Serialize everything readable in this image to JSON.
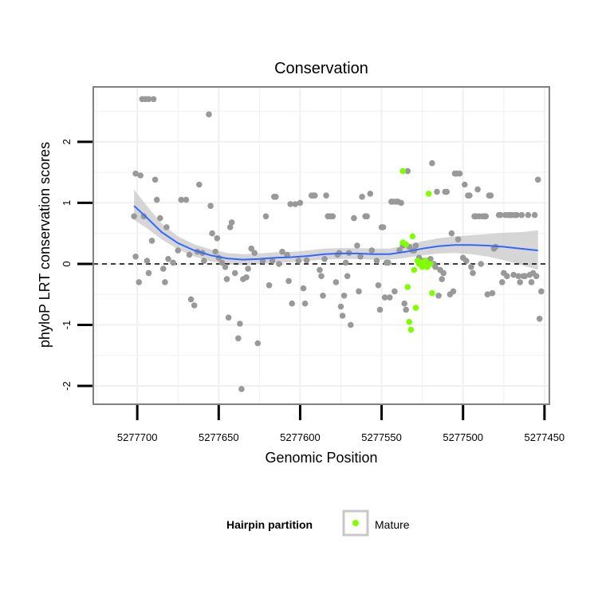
{
  "chart_data": {
    "type": "scatter",
    "title": "Conservation",
    "xlabel": "Genomic Position",
    "ylabel": "phyloP LRT conservation scores",
    "x_reversed": true,
    "xlim": [
      5277727,
      5277447
    ],
    "ylim": [
      -2.3,
      2.9
    ],
    "x_ticks": [
      5277700,
      5277650,
      5277600,
      5277550,
      5277500,
      5277450
    ],
    "x_tick_labels": [
      "5277700",
      "5277650",
      "5277600",
      "5277550",
      "5277500",
      "5277450"
    ],
    "y_ticks": [
      -2,
      -1,
      0,
      1,
      2
    ],
    "y_tick_labels": [
      "-2",
      "-1",
      "0",
      "1",
      "2"
    ],
    "reference_line": {
      "y": 0,
      "style": "dashed",
      "color": "#000000"
    },
    "grid": true,
    "colors": {
      "other": "#999999",
      "mature": "#80ff00",
      "smooth": "#3366ff",
      "ribbon": "#c8c8c8",
      "panel_border": "#808080",
      "grid": "#f0f0f0"
    },
    "legend": {
      "title": "Hairpin partition",
      "entries": [
        "Mature"
      ],
      "position": "bottom"
    },
    "series": [
      {
        "name": "Other",
        "points": [
          [
            5277702,
            0.78
          ],
          [
            5277701,
            1.48
          ],
          [
            5277698,
            1.45
          ],
          [
            5277701,
            0.12
          ],
          [
            5277699,
            -0.3
          ],
          [
            5277697,
            2.7
          ],
          [
            5277695,
            2.7
          ],
          [
            5277693,
            2.7
          ],
          [
            5277690,
            2.7
          ],
          [
            5277696,
            0.78
          ],
          [
            5277694,
            0.05
          ],
          [
            5277693,
            -0.15
          ],
          [
            5277691,
            0.38
          ],
          [
            5277689,
            1.38
          ],
          [
            5277688,
            1.05
          ],
          [
            5277686,
            0.75
          ],
          [
            5277684,
            -0.08
          ],
          [
            5277683,
            -0.3
          ],
          [
            5277682,
            0.6
          ],
          [
            5277681,
            0.08
          ],
          [
            5277678,
            0.02
          ],
          [
            5277675,
            0.22
          ],
          [
            5277673,
            1.05
          ],
          [
            5277670,
            1.05
          ],
          [
            5277668,
            0.15
          ],
          [
            5277667,
            -0.58
          ],
          [
            5277665,
            -0.68
          ],
          [
            5277663,
            0.2
          ],
          [
            5277662,
            1.3
          ],
          [
            5277660,
            0.18
          ],
          [
            5277659,
            0.05
          ],
          [
            5277656,
            2.45
          ],
          [
            5277655,
            0.95
          ],
          [
            5277654,
            0.5
          ],
          [
            5277652,
            0.2
          ],
          [
            5277651,
            0.42
          ],
          [
            5277650,
            0.1
          ],
          [
            5277648,
            0.02
          ],
          [
            5277646,
            -0.05
          ],
          [
            5277645,
            -0.25
          ],
          [
            5277644,
            -0.88
          ],
          [
            5277643,
            0.6
          ],
          [
            5277642,
            0.68
          ],
          [
            5277640,
            -0.15
          ],
          [
            5277638,
            -1.22
          ],
          [
            5277637,
            -0.98
          ],
          [
            5277636,
            -2.05
          ],
          [
            5277635,
            -0.25
          ],
          [
            5277633,
            -0.22
          ],
          [
            5277632,
            -0.08
          ],
          [
            5277630,
            0.25
          ],
          [
            5277628,
            0.18
          ],
          [
            5277626,
            -1.3
          ],
          [
            5277623,
            0.05
          ],
          [
            5277621,
            0.78
          ],
          [
            5277619,
            -0.35
          ],
          [
            5277617,
            0.05
          ],
          [
            5277616,
            1.1
          ],
          [
            5277615,
            1.1
          ],
          [
            5277613,
            0.0
          ],
          [
            5277611,
            0.2
          ],
          [
            5277608,
            0.15
          ],
          [
            5277607,
            -0.28
          ],
          [
            5277606,
            0.98
          ],
          [
            5277605,
            -0.65
          ],
          [
            5277603,
            0.98
          ],
          [
            5277601,
            0.05
          ],
          [
            5277600,
            1.0
          ],
          [
            5277598,
            -0.4
          ],
          [
            5277597,
            -0.65
          ],
          [
            5277596,
            0.06
          ],
          [
            5277593,
            1.12
          ],
          [
            5277592,
            1.12
          ],
          [
            5277591,
            1.12
          ],
          [
            5277588,
            -0.1
          ],
          [
            5277587,
            -0.2
          ],
          [
            5277586,
            -0.52
          ],
          [
            5277585,
            0.08
          ],
          [
            5277584,
            1.12
          ],
          [
            5277583,
            0.78
          ],
          [
            5277582,
            0.78
          ],
          [
            5277581,
            0.78
          ],
          [
            5277580,
            0.78
          ],
          [
            5277578,
            -0.3
          ],
          [
            5277577,
            0.15
          ],
          [
            5277576,
            0.18
          ],
          [
            5277575,
            -0.7
          ],
          [
            5277574,
            -0.85
          ],
          [
            5277573,
            -0.52
          ],
          [
            5277572,
            0.02
          ],
          [
            5277571,
            -0.2
          ],
          [
            5277570,
            0.18
          ],
          [
            5277569,
            -1.0
          ],
          [
            5277567,
            0.75
          ],
          [
            5277565,
            0.3
          ],
          [
            5277564,
            -0.45
          ],
          [
            5277563,
            0.12
          ],
          [
            5277562,
            1.1
          ],
          [
            5277560,
            0.78
          ],
          [
            5277559,
            0.78
          ],
          [
            5277557,
            1.15
          ],
          [
            5277556,
            0.22
          ],
          [
            5277553,
            0.05
          ],
          [
            5277552,
            -0.35
          ],
          [
            5277551,
            -0.75
          ],
          [
            5277550,
            0.6
          ],
          [
            5277549,
            0.6
          ],
          [
            5277548,
            -0.55
          ],
          [
            5277547,
            0.02
          ],
          [
            5277546,
            0.02
          ],
          [
            5277545,
            -0.55
          ],
          [
            5277544,
            1.02
          ],
          [
            5277543,
            1.02
          ],
          [
            5277542,
            -0.45
          ],
          [
            5277541,
            1.02
          ],
          [
            5277540,
            1.02
          ],
          [
            5277539,
            0.22
          ],
          [
            5277538,
            1.0
          ],
          [
            5277537,
            0.3
          ],
          [
            5277536,
            -0.65
          ],
          [
            5277535,
            -0.75
          ],
          [
            5277534,
            1.52
          ],
          [
            5277533,
            0.28
          ],
          [
            5277531,
            0.22
          ],
          [
            5277530,
            0.22
          ],
          [
            5277529,
            0.3
          ],
          [
            5277527,
            0.1
          ],
          [
            5277526,
            0.0
          ],
          [
            5277524,
            0.05
          ],
          [
            5277522,
            0.05
          ],
          [
            5277521,
            0.0
          ],
          [
            5277520,
            0.08
          ],
          [
            5277519,
            1.65
          ],
          [
            5277518,
            0.0
          ],
          [
            5277517,
            -0.05
          ],
          [
            5277516,
            1.18
          ],
          [
            5277515,
            -0.52
          ],
          [
            5277514,
            -0.1
          ],
          [
            5277513,
            -0.25
          ],
          [
            5277512,
            -0.15
          ],
          [
            5277511,
            1.18
          ],
          [
            5277510,
            1.18
          ],
          [
            5277508,
            -0.5
          ],
          [
            5277507,
            0.5
          ],
          [
            5277506,
            -0.45
          ],
          [
            5277505,
            1.48
          ],
          [
            5277504,
            1.48
          ],
          [
            5277503,
            0.4
          ],
          [
            5277502,
            1.48
          ],
          [
            5277500,
            0.1
          ],
          [
            5277499,
            1.3
          ],
          [
            5277498,
            0.05
          ],
          [
            5277497,
            1.12
          ],
          [
            5277496,
            1.12
          ],
          [
            5277495,
            -0.05
          ],
          [
            5277494,
            -0.15
          ],
          [
            5277493,
            0.78
          ],
          [
            5277492,
            0.78
          ],
          [
            5277491,
            1.22
          ],
          [
            5277490,
            0.78
          ],
          [
            5277489,
            0.0
          ],
          [
            5277488,
            0.78
          ],
          [
            5277487,
            0.78
          ],
          [
            5277486,
            0.78
          ],
          [
            5277485,
            -0.5
          ],
          [
            5277484,
            1.12
          ],
          [
            5277483,
            1.12
          ],
          [
            5277482,
            -0.48
          ],
          [
            5277481,
            0.25
          ],
          [
            5277480,
            0.28
          ],
          [
            5277478,
            0.8
          ],
          [
            5277477,
            0.8
          ],
          [
            5277476,
            -0.3
          ],
          [
            5277475,
            -0.15
          ],
          [
            5277474,
            0.8
          ],
          [
            5277473,
            -0.2
          ],
          [
            5277472,
            0.8
          ],
          [
            5277471,
            0.8
          ],
          [
            5277470,
            0.8
          ],
          [
            5277469,
            -0.18
          ],
          [
            5277468,
            0.8
          ],
          [
            5277467,
            0.8
          ],
          [
            5277466,
            -0.2
          ],
          [
            5277465,
            -0.3
          ],
          [
            5277464,
            0.8
          ],
          [
            5277463,
            -0.2
          ],
          [
            5277462,
            -0.2
          ],
          [
            5277460,
            0.8
          ],
          [
            5277459,
            -0.18
          ],
          [
            5277458,
            -0.3
          ],
          [
            5277457,
            -0.15
          ],
          [
            5277456,
            0.8
          ],
          [
            5277455,
            -0.2
          ],
          [
            5277454,
            1.38
          ],
          [
            5277453,
            -0.9
          ],
          [
            5277452,
            -0.45
          ]
        ]
      },
      {
        "name": "Mature",
        "points": [
          [
            5277537,
            1.52
          ],
          [
            5277537,
            0.35
          ],
          [
            5277535,
            0.32
          ],
          [
            5277534,
            -0.38
          ],
          [
            5277533,
            -0.95
          ],
          [
            5277532,
            -1.08
          ],
          [
            5277531,
            0.45
          ],
          [
            5277530,
            -0.1
          ],
          [
            5277529,
            -0.72
          ],
          [
            5277528,
            0.05
          ],
          [
            5277527,
            0.0
          ],
          [
            5277526,
            0.02
          ],
          [
            5277525,
            -0.05
          ],
          [
            5277524,
            0.03
          ],
          [
            5277523,
            0.05
          ],
          [
            5277522,
            -0.05
          ],
          [
            5277521,
            1.15
          ],
          [
            5277520,
            0.0
          ],
          [
            5277519,
            -0.48
          ]
        ]
      }
    ],
    "smooth": {
      "method": "loess",
      "line": [
        [
          5277702,
          0.95
        ],
        [
          5277695,
          0.78
        ],
        [
          5277685,
          0.52
        ],
        [
          5277675,
          0.34
        ],
        [
          5277665,
          0.22
        ],
        [
          5277655,
          0.14
        ],
        [
          5277645,
          0.09
        ],
        [
          5277635,
          0.07
        ],
        [
          5277625,
          0.08
        ],
        [
          5277615,
          0.1
        ],
        [
          5277605,
          0.11
        ],
        [
          5277595,
          0.13
        ],
        [
          5277585,
          0.16
        ],
        [
          5277575,
          0.17
        ],
        [
          5277565,
          0.17
        ],
        [
          5277555,
          0.16
        ],
        [
          5277545,
          0.16
        ],
        [
          5277535,
          0.2
        ],
        [
          5277525,
          0.25
        ],
        [
          5277515,
          0.29
        ],
        [
          5277505,
          0.31
        ],
        [
          5277495,
          0.31
        ],
        [
          5277485,
          0.3
        ],
        [
          5277475,
          0.28
        ],
        [
          5277465,
          0.25
        ],
        [
          5277454,
          0.22
        ]
      ],
      "lower": [
        [
          5277702,
          0.72
        ],
        [
          5277695,
          0.6
        ],
        [
          5277685,
          0.4
        ],
        [
          5277675,
          0.24
        ],
        [
          5277665,
          0.12
        ],
        [
          5277655,
          0.04
        ],
        [
          5277645,
          0.0
        ],
        [
          5277635,
          -0.02
        ],
        [
          5277625,
          0.0
        ],
        [
          5277615,
          0.02
        ],
        [
          5277605,
          0.03
        ],
        [
          5277595,
          0.05
        ],
        [
          5277585,
          0.07
        ],
        [
          5277575,
          0.08
        ],
        [
          5277565,
          0.08
        ],
        [
          5277555,
          0.07
        ],
        [
          5277545,
          0.07
        ],
        [
          5277535,
          0.1
        ],
        [
          5277525,
          0.14
        ],
        [
          5277515,
          0.17
        ],
        [
          5277505,
          0.18
        ],
        [
          5277495,
          0.16
        ],
        [
          5277485,
          0.12
        ],
        [
          5277475,
          0.06
        ],
        [
          5277465,
          -0.01
        ],
        [
          5277454,
          -0.1
        ]
      ],
      "upper": [
        [
          5277702,
          1.22
        ],
        [
          5277695,
          0.98
        ],
        [
          5277685,
          0.66
        ],
        [
          5277675,
          0.45
        ],
        [
          5277665,
          0.32
        ],
        [
          5277655,
          0.24
        ],
        [
          5277645,
          0.18
        ],
        [
          5277635,
          0.16
        ],
        [
          5277625,
          0.17
        ],
        [
          5277615,
          0.19
        ],
        [
          5277605,
          0.2
        ],
        [
          5277595,
          0.22
        ],
        [
          5277585,
          0.25
        ],
        [
          5277575,
          0.26
        ],
        [
          5277565,
          0.26
        ],
        [
          5277555,
          0.25
        ],
        [
          5277545,
          0.25
        ],
        [
          5277535,
          0.31
        ],
        [
          5277525,
          0.37
        ],
        [
          5277515,
          0.42
        ],
        [
          5277505,
          0.45
        ],
        [
          5277495,
          0.47
        ],
        [
          5277485,
          0.49
        ],
        [
          5277475,
          0.51
        ],
        [
          5277465,
          0.52
        ],
        [
          5277454,
          0.55
        ]
      ]
    }
  }
}
